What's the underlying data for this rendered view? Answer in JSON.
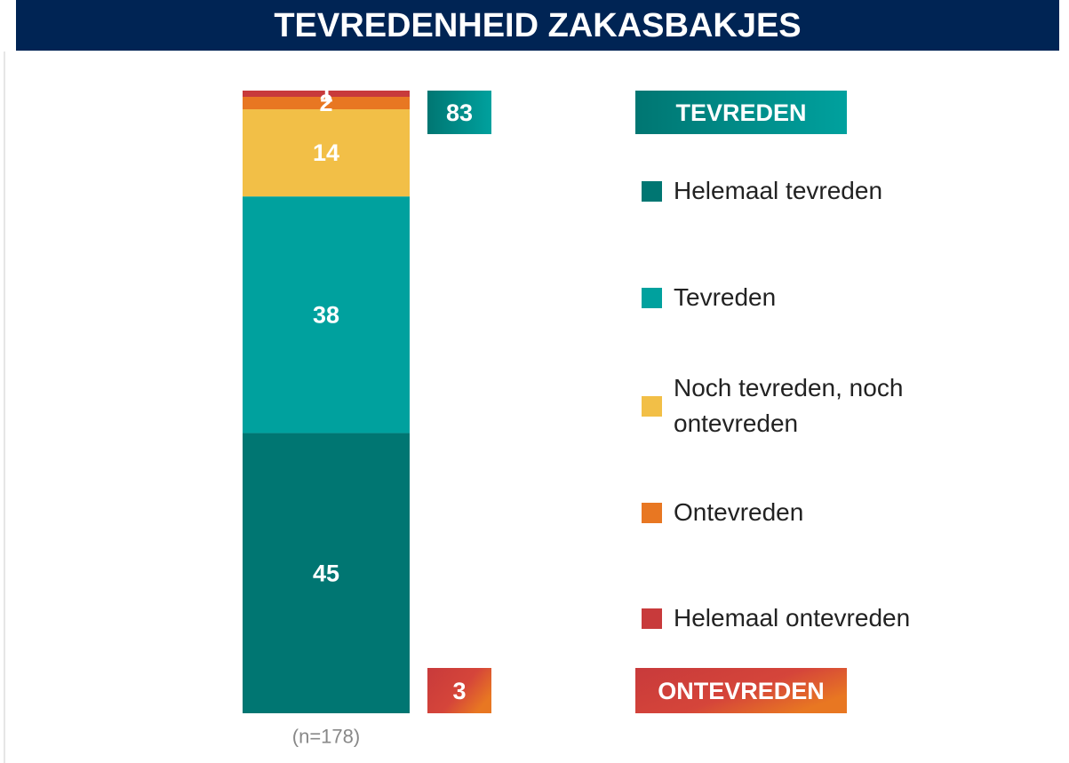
{
  "chart_data": {
    "type": "stacked_bar",
    "title": "TEVREDENHEID ZAKASBAKJES",
    "note": "(n=178)",
    "ylim": [
      0,
      100
    ],
    "series": [
      {
        "name": "Helemaal tevreden",
        "color": "#007672",
        "values": [
          45
        ]
      },
      {
        "name": "Tevreden",
        "color": "#00A19E",
        "values": [
          38
        ]
      },
      {
        "name": "Noch tevreden, noch ontevreden",
        "color": "#F2BF47",
        "values": [
          14
        ]
      },
      {
        "name": "Ontevreden",
        "color": "#E87722",
        "values": [
          2
        ]
      },
      {
        "name": "Helemaal ontevreden",
        "color": "#C83A3B",
        "values": [
          1
        ]
      }
    ],
    "groups": [
      {
        "label": "TEVREDEN",
        "value": 83
      },
      {
        "label": "ONTEVREDEN",
        "value": 3
      }
    ]
  }
}
